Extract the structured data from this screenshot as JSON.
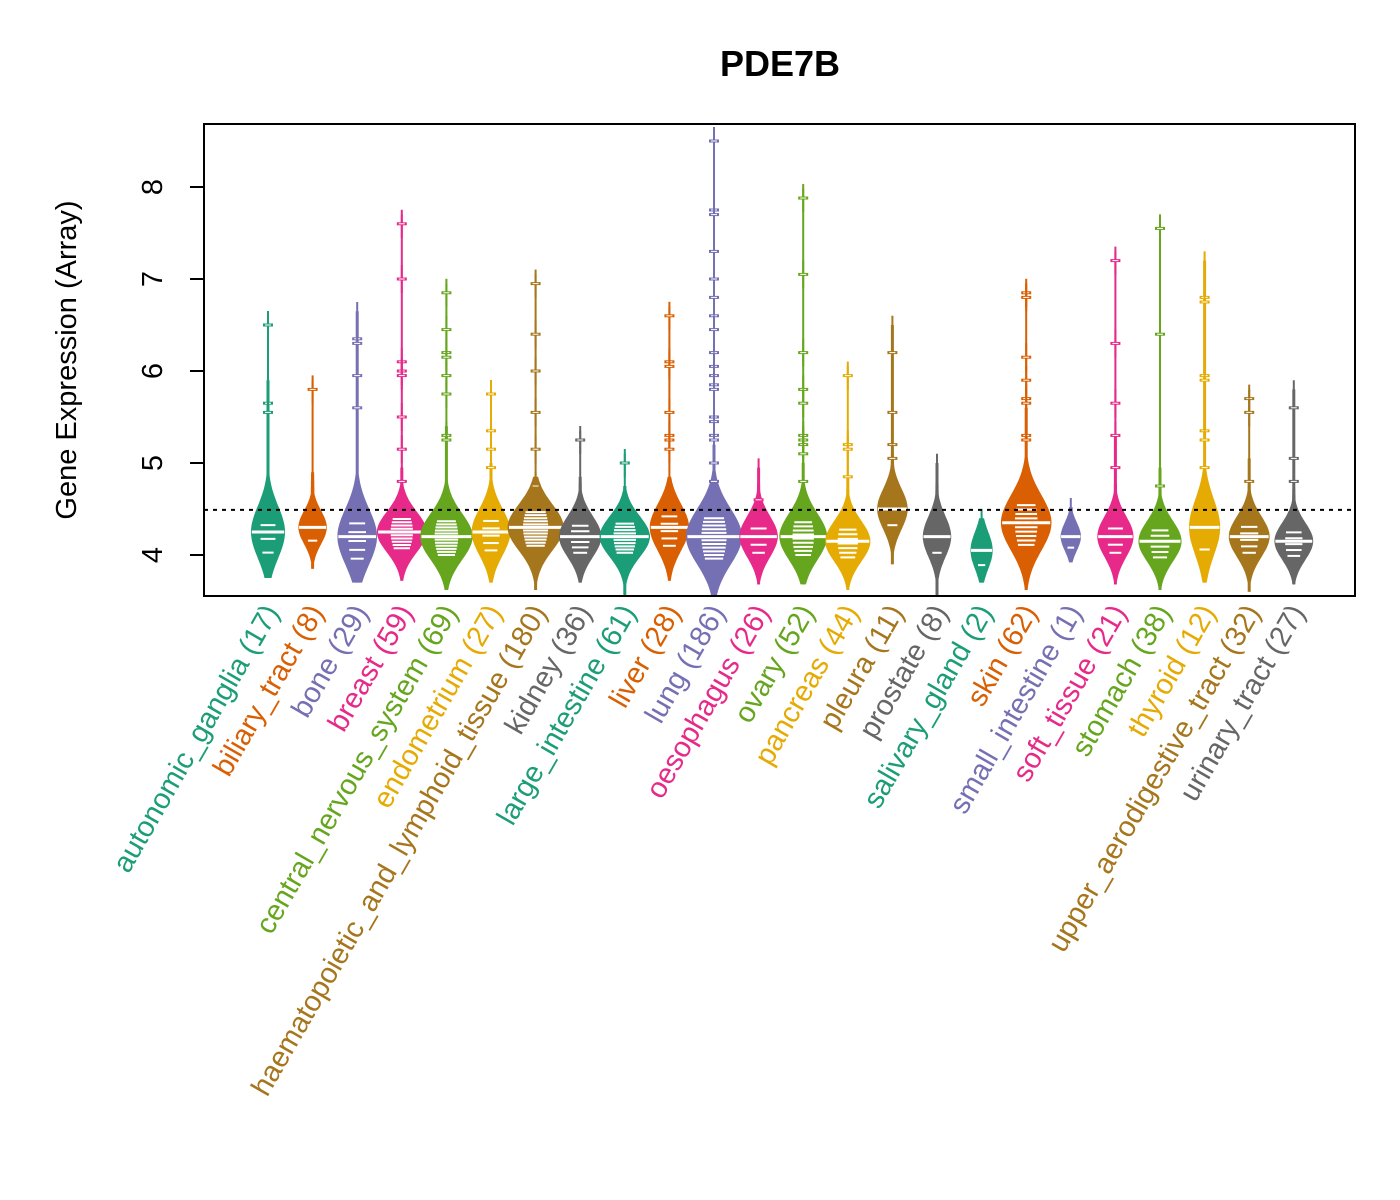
{
  "chart_data": {
    "type": "beanplot",
    "title": "PDE7B",
    "xlabel": "",
    "ylabel": "Gene Expression (Array)",
    "ylim": [
      3.55,
      8.7
    ],
    "yticks": [
      4,
      5,
      6,
      7,
      8
    ],
    "reference_line": 4.49,
    "grid": false,
    "legend": "none",
    "categories": [
      {
        "name": "autonomic_ganglia",
        "n": 17,
        "color": "#1B9E77",
        "median": 4.25,
        "spread": 0.28,
        "min": 3.75,
        "max": 5.9,
        "outliers": [
          6.5,
          5.65,
          5.55
        ]
      },
      {
        "name": "biliary_tract",
        "n": 8,
        "color": "#D95F02",
        "median": 4.3,
        "spread": 0.18,
        "min": 3.85,
        "max": 4.9,
        "outliers": [
          5.8
        ]
      },
      {
        "name": "bone",
        "n": 29,
        "color": "#7570B3",
        "median": 4.2,
        "spread": 0.3,
        "min": 3.7,
        "max": 6.65,
        "outliers": [
          6.35,
          6.3,
          5.95,
          5.6
        ]
      },
      {
        "name": "breast",
        "n": 59,
        "color": "#E7298A",
        "median": 4.25,
        "spread": 0.22,
        "min": 3.72,
        "max": 4.95,
        "outliers": [
          7.6,
          7.0,
          6.1,
          6.0,
          5.95,
          5.5,
          5.15,
          4.8
        ]
      },
      {
        "name": "central_nervous_system",
        "n": 69,
        "color": "#66A61E",
        "median": 4.2,
        "spread": 0.25,
        "min": 3.62,
        "max": 5.4,
        "outliers": [
          6.85,
          6.45,
          6.2,
          6.15,
          5.95,
          5.75,
          5.3,
          5.25
        ]
      },
      {
        "name": "endometrium",
        "n": 27,
        "color": "#E6AB02",
        "median": 4.25,
        "spread": 0.25,
        "min": 3.7,
        "max": 5.0,
        "outliers": [
          5.75,
          5.35,
          5.15,
          4.95
        ]
      },
      {
        "name": "haematopoietic_and_lymphoid_tissue",
        "n": 180,
        "color": "#A6761D",
        "median": 4.3,
        "spread": 0.25,
        "min": 3.62,
        "max": 4.85,
        "outliers": [
          6.95,
          6.4,
          6.0,
          5.55,
          5.15,
          4.75
        ]
      },
      {
        "name": "kidney",
        "n": 36,
        "color": "#666666",
        "median": 4.2,
        "spread": 0.22,
        "min": 3.7,
        "max": 4.85,
        "outliers": [
          5.25
        ]
      },
      {
        "name": "large_intestine",
        "n": 61,
        "color": "#1B9E77",
        "median": 4.2,
        "spread": 0.22,
        "min": 3.55,
        "max": 4.75,
        "outliers": [
          5.0
        ]
      },
      {
        "name": "liver",
        "n": 28,
        "color": "#D95F02",
        "median": 4.3,
        "spread": 0.25,
        "min": 3.72,
        "max": 4.85,
        "outliers": [
          6.6,
          6.1,
          6.05,
          5.55,
          5.3,
          5.25,
          5.15
        ]
      },
      {
        "name": "lung",
        "n": 186,
        "color": "#7570B3",
        "median": 4.2,
        "spread": 0.3,
        "min": 3.55,
        "max": 5.2,
        "outliers": [
          8.5,
          7.75,
          7.7,
          7.3,
          7.0,
          6.8,
          6.6,
          6.45,
          6.2,
          6.05,
          5.95,
          5.85,
          5.8,
          5.5,
          5.45,
          5.3,
          5.25,
          5.0,
          4.8
        ]
      },
      {
        "name": "oesophagus",
        "n": 26,
        "color": "#E7298A",
        "median": 4.2,
        "spread": 0.22,
        "min": 3.68,
        "max": 4.95,
        "outliers": [
          4.6
        ]
      },
      {
        "name": "ovary",
        "n": 52,
        "color": "#66A61E",
        "median": 4.2,
        "spread": 0.25,
        "min": 3.68,
        "max": 5.0,
        "outliers": [
          7.88,
          7.05,
          6.2,
          5.8,
          5.65,
          5.3,
          5.25,
          5.2,
          5.1,
          4.8
        ]
      },
      {
        "name": "pancreas",
        "n": 44,
        "color": "#E6AB02",
        "median": 4.15,
        "spread": 0.22,
        "min": 3.62,
        "max": 4.85,
        "outliers": [
          5.95,
          5.2,
          5.15,
          4.85
        ]
      },
      {
        "name": "pleura",
        "n": 11,
        "color": "#A6761D",
        "median": 4.5,
        "spread": 0.22,
        "min": 3.9,
        "max": 6.5,
        "outliers": [
          6.2,
          5.55,
          5.2,
          5.05
        ]
      },
      {
        "name": "prostate",
        "n": 8,
        "color": "#666666",
        "median": 4.2,
        "spread": 0.22,
        "min": 3.55,
        "max": 5.0,
        "outliers": []
      },
      {
        "name": "salivary_gland",
        "n": 2,
        "color": "#1B9E77",
        "median": 4.05,
        "spread": 0.2,
        "min": 3.7,
        "max": 4.4,
        "outliers": []
      },
      {
        "name": "skin",
        "n": 62,
        "color": "#D95F02",
        "median": 4.35,
        "spread": 0.3,
        "min": 3.62,
        "max": 5.6,
        "outliers": [
          6.85,
          6.8,
          6.15,
          5.9,
          5.7,
          5.65,
          5.3,
          5.25
        ]
      },
      {
        "name": "small_intestine",
        "n": 1,
        "color": "#7570B3",
        "median": 4.2,
        "spread": 0.15,
        "min": 3.92,
        "max": 4.52,
        "outliers": []
      },
      {
        "name": "soft_tissue",
        "n": 21,
        "color": "#E7298A",
        "median": 4.2,
        "spread": 0.22,
        "min": 3.68,
        "max": 5.3,
        "outliers": [
          7.2,
          6.3,
          5.65,
          5.3,
          4.95
        ]
      },
      {
        "name": "stomach",
        "n": 38,
        "color": "#66A61E",
        "median": 4.15,
        "spread": 0.22,
        "min": 3.62,
        "max": 4.95,
        "outliers": [
          7.55,
          6.4,
          4.75
        ]
      },
      {
        "name": "thyroid",
        "n": 12,
        "color": "#E6AB02",
        "median": 4.3,
        "spread": 0.3,
        "min": 3.7,
        "max": 7.2,
        "outliers": [
          6.8,
          6.75,
          5.95,
          5.9,
          5.35,
          5.25,
          4.95
        ]
      },
      {
        "name": "upper_aerodigestive_tract",
        "n": 32,
        "color": "#A6761D",
        "median": 4.2,
        "spread": 0.22,
        "min": 3.6,
        "max": 5.05,
        "outliers": [
          5.7,
          5.55,
          4.8
        ]
      },
      {
        "name": "urinary_tract",
        "n": 27,
        "color": "#666666",
        "median": 4.15,
        "spread": 0.2,
        "min": 3.68,
        "max": 5.8,
        "outliers": [
          5.6,
          5.05,
          4.8
        ]
      }
    ]
  }
}
